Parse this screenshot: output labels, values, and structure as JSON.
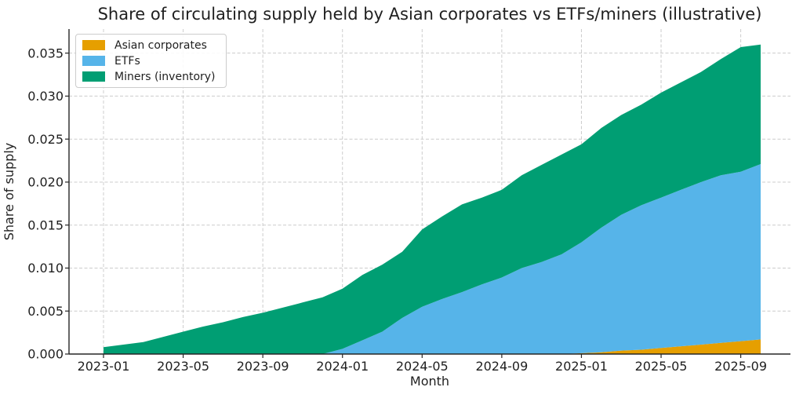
{
  "chart_data": {
    "type": "area",
    "stacked": true,
    "title": "Share of circulating supply held by Asian corporates vs ETFs/miners (illustrative)",
    "xlabel": "Month",
    "ylabel": "Share of supply",
    "grid": true,
    "legend_position": "upper-left",
    "ylim": [
      0,
      0.0378
    ],
    "yticks": [
      "0.000",
      "0.005",
      "0.010",
      "0.015",
      "0.020",
      "0.025",
      "0.030",
      "0.035"
    ],
    "xticks": [
      "2023-01",
      "2023-05",
      "2023-09",
      "2024-01",
      "2024-05",
      "2024-09",
      "2025-01",
      "2025-05",
      "2025-09"
    ],
    "x": [
      "2023-01",
      "2023-02",
      "2023-03",
      "2023-04",
      "2023-05",
      "2023-06",
      "2023-07",
      "2023-08",
      "2023-09",
      "2023-10",
      "2023-11",
      "2023-12",
      "2024-01",
      "2024-02",
      "2024-03",
      "2024-04",
      "2024-05",
      "2024-06",
      "2024-07",
      "2024-08",
      "2024-09",
      "2024-10",
      "2024-11",
      "2024-12",
      "2025-01",
      "2025-02",
      "2025-03",
      "2025-04",
      "2025-05",
      "2025-06",
      "2025-07",
      "2025-08",
      "2025-09",
      "2025-10"
    ],
    "series": [
      {
        "name": "Asian corporates",
        "color": "#E69F00",
        "values": [
          0,
          0,
          0,
          0,
          0,
          0,
          0,
          0,
          0,
          0,
          0,
          0,
          0,
          0,
          0,
          0,
          0,
          0,
          0,
          0,
          0,
          0,
          0,
          0,
          0.0001,
          0.0002,
          0.0004,
          0.0005,
          0.0007,
          0.0009,
          0.0011,
          0.0013,
          0.0015,
          0.0017
        ]
      },
      {
        "name": "ETFs",
        "color": "#56B4E9",
        "values": [
          0,
          0,
          0,
          0,
          0,
          0,
          0,
          0,
          0,
          0,
          0,
          0,
          0.0006,
          0.0016,
          0.0026,
          0.0042,
          0.0055,
          0.0064,
          0.0072,
          0.0081,
          0.0089,
          0.01,
          0.0107,
          0.0116,
          0.0129,
          0.0145,
          0.0158,
          0.0168,
          0.0175,
          0.0182,
          0.0189,
          0.0195,
          0.0197,
          0.0204
        ]
      },
      {
        "name": "Miners (inventory)",
        "color": "#009E73",
        "values": [
          0.0008,
          0.0011,
          0.0014,
          0.002,
          0.0026,
          0.0032,
          0.0037,
          0.0043,
          0.0048,
          0.0054,
          0.006,
          0.0066,
          0.007,
          0.0076,
          0.0078,
          0.0077,
          0.009,
          0.0096,
          0.0102,
          0.0101,
          0.0102,
          0.0108,
          0.0113,
          0.0116,
          0.0114,
          0.0116,
          0.0116,
          0.0117,
          0.0122,
          0.0125,
          0.0128,
          0.0135,
          0.0145,
          0.0139
        ]
      }
    ],
    "colors": {
      "text": "#1f1f1f",
      "spine": "#262626",
      "grid": "#cccccc",
      "background": "#ffffff"
    }
  }
}
